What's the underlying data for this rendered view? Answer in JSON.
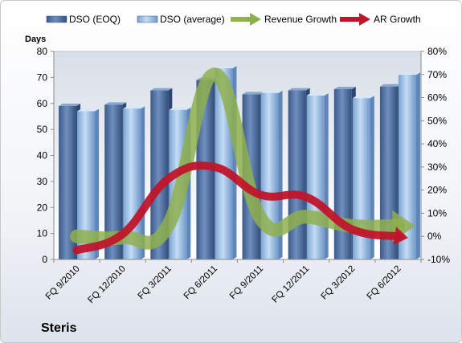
{
  "chart_data": {
    "type": "bar",
    "categories": [
      "FQ 9/2010",
      "FQ 12/2010",
      "FQ 3/2011",
      "FQ 6/2011",
      "FQ 9/2011",
      "FQ 12/2011",
      "FQ 3/2012",
      "FQ 6/2012"
    ],
    "series": [
      {
        "name": "DSO (EOQ)",
        "type": "bar",
        "axis": "left",
        "values": [
          59,
          59.5,
          65,
          69,
          63.5,
          65,
          65.5,
          66.5
        ]
      },
      {
        "name": "DSO (average)",
        "type": "bar",
        "axis": "left",
        "values": [
          57,
          58,
          57.5,
          73.5,
          64,
          63,
          62,
          71
        ]
      },
      {
        "name": "Revenue Growth",
        "type": "line",
        "axis": "right",
        "values": [
          0,
          -0.5,
          5,
          70,
          8,
          8.5,
          4.5,
          4.5
        ]
      },
      {
        "name": "AR Growth",
        "type": "line",
        "axis": "right",
        "values": [
          -6,
          1,
          25,
          30,
          18,
          17,
          3,
          0
        ]
      }
    ],
    "ylabel": "Days",
    "ylim": [
      0,
      80
    ],
    "yticks": [
      "0",
      "10",
      "20",
      "30",
      "40",
      "50",
      "60",
      "70",
      "80"
    ],
    "y2lim": [
      -10,
      80
    ],
    "y2ticks": [
      "-10%",
      "0%",
      "10%",
      "20%",
      "30%",
      "40%",
      "50%",
      "60%",
      "70%",
      "80%"
    ],
    "legend_position": "top",
    "grid": false,
    "colors": {
      "dso_eoq": "#4f6e9d",
      "dso_avg": "#9fc1e6",
      "revenue": "#8fb04e",
      "ar": "#c0152a"
    }
  },
  "company": "Steris"
}
